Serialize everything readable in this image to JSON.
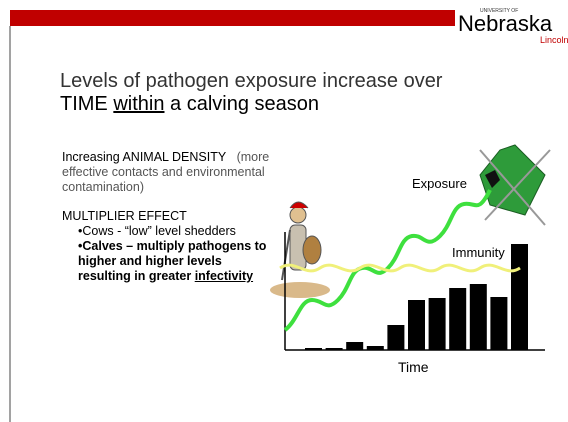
{
  "header": {
    "logo": "Nebraska",
    "logo_top": "UNIVERSITY OF",
    "logo_bottom": "Lincoln"
  },
  "title": {
    "line1": "Levels of pathogen exposure increase over",
    "line2_start": "TIME ",
    "line2_underlined": "within",
    "line2_end": " a calving season"
  },
  "body": {
    "density_label": "Increasing ANIMAL DENSITY",
    "density_note": "(more effective contacts and environmental contamination)",
    "multiplier": "MULTIPLIER EFFECT",
    "cows": "•Cows  - “low” level shedders",
    "calves": "•Calves – multiply pathogens to higher and higher levels resulting in greater ",
    "calves_underlined": "infectivity"
  },
  "chart_data": {
    "type": "bar",
    "x_label": "Time",
    "curve_labels": [
      "Exposure",
      "Immunity"
    ],
    "values": [
      2,
      2,
      8,
      4,
      25,
      50,
      52,
      62,
      66,
      53,
      106
    ],
    "color": "#000000",
    "ylim": [
      0,
      118
    ]
  }
}
